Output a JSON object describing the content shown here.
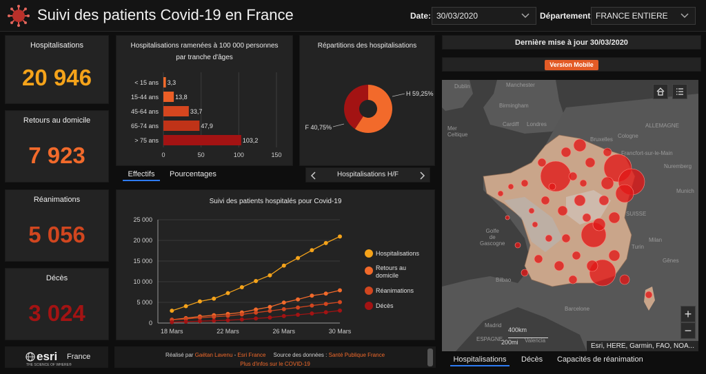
{
  "header": {
    "title": "Suivi des patients Covid-19 en France",
    "date_label": "Date:",
    "date_value": "30/03/2020",
    "department_label": "Département:",
    "department_value": "FRANCE ENTIERE"
  },
  "kpis": [
    {
      "title": "Hospitalisations",
      "value": "20 946",
      "color": "#f5a31a"
    },
    {
      "title": "Retours au domicile",
      "value": "7 923",
      "color": "#f26a2b"
    },
    {
      "title": "Réanimations",
      "value": "5 056",
      "color": "#d1461f"
    },
    {
      "title": "Décès",
      "value": "3 024",
      "color": "#a31313"
    }
  ],
  "age_chart": {
    "title": "Hospitalisations ramenées à 100 000 personnes par tranche d'âges",
    "tabs": [
      "Effectifs",
      "Pourcentages"
    ],
    "active_tab": "Effectifs"
  },
  "donut": {
    "title": "Répartitions des hospitalisations",
    "nav_label": "Hospitalisations H/F",
    "prev_icon": "chevron-left-icon",
    "next_icon": "chevron-right-icon"
  },
  "timeseries": {
    "title": "Suivi des patients hospitalés pour Covid-19"
  },
  "update": {
    "text": "Dernière mise à jour 30/03/2020",
    "mobile_button": "Version Mobile"
  },
  "map": {
    "attribution": "Esri, HERE, Garmin, FAO, NOA...",
    "scale_1": "400km",
    "scale_2": "200mi",
    "zoom_in": "+",
    "zoom_out": "−",
    "labels": {
      "dublin": "Dublin",
      "manchester": "Manchester",
      "birmingham": "Birmingham",
      "cardiff": "Cardiff",
      "londres": "Londres",
      "mer_celtique": "Mer\nCeltique",
      "cologne": "Cologne",
      "allemagne": "ALLEMAGNE",
      "bruxelles": "Bruxelles",
      "francfort": "Francfort-sur-le-Main",
      "nuremberg": "Nuremberg",
      "munich": "Munich",
      "suisse": "SUISSE",
      "milan": "Milan",
      "turin": "Turin",
      "golfe_gascogne": "Golfe\nde\nGascogne",
      "bilbao": "Bilbao",
      "barcelone": "Barcelone",
      "madrid": "Madrid",
      "valencia": "Valencia",
      "espagne": "ESPAGNE",
      "genes": "Gênes"
    },
    "tabs": [
      "Hospitalisations",
      "Décès",
      "Capacités de réanimation"
    ],
    "active_tab": "Hospitalisations"
  },
  "footer": {
    "esri_brand": "esri",
    "esri_country": "France",
    "esri_tagline": "THE SCIENCE OF WHERE®",
    "credits_prefix": "Réalisé par",
    "credits_author": "Gaëtan Lavenu",
    "credits_sep": " - ",
    "credits_company": "Esri France",
    "source_prefix": "Source des données :",
    "source_name": "Santé Publique France",
    "more_info": "Plus d'infos sur le COVID-19"
  },
  "colors": {
    "hospitalisations": "#f5a31a",
    "retours": "#f26a2b",
    "reanimations": "#d1461f",
    "deces": "#a31313",
    "accent": "#2e7cf6"
  },
  "chart_data": [
    {
      "type": "bar",
      "orientation": "horizontal",
      "categories": [
        "< 15 ans",
        "15-44 ans",
        "45-64 ans",
        "65-74 ans",
        "> 75 ans"
      ],
      "values": [
        3.3,
        13.8,
        33.7,
        47.9,
        103.2
      ],
      "value_labels": [
        "3,3",
        "13,8",
        "33,7",
        "47,9",
        "103,2"
      ],
      "xlim": [
        0,
        150
      ],
      "xticks": [
        0,
        50,
        100,
        150
      ],
      "bar_colors": [
        "#f26a2b",
        "#ea5e26",
        "#d5461f",
        "#c03318",
        "#a31313"
      ]
    },
    {
      "type": "pie",
      "donut": true,
      "labels": [
        "H",
        "F"
      ],
      "values": [
        59.25,
        40.75
      ],
      "value_labels": [
        "H 59,25%",
        "F 40,75%"
      ],
      "colors": [
        "#f26a2b",
        "#a31313"
      ]
    },
    {
      "type": "line",
      "x": [
        "17 Mars",
        "18 Mars",
        "19 Mars",
        "20 Mars",
        "21 Mars",
        "22 Mars",
        "23 Mars",
        "24 Mars",
        "25 Mars",
        "26 Mars",
        "27 Mars",
        "28 Mars",
        "29 Mars",
        "30 Mars"
      ],
      "xticks": [
        "18 Mars",
        "22 Mars",
        "26 Mars",
        "30 Mars"
      ],
      "ylim": [
        0,
        25000
      ],
      "yticks": [
        "0",
        "5 000",
        "10 000",
        "15 000",
        "20 000",
        "25 000"
      ],
      "series": [
        {
          "name": "Hospitalisations",
          "color": "#f5a31a",
          "values": [
            null,
            2972,
            4073,
            5226,
            5900,
            7240,
            8675,
            10176,
            11539,
            13904,
            15732,
            17620,
            19354,
            20946
          ]
        },
        {
          "name": "Retours au domicile",
          "color": "#f26a2b",
          "values": [
            null,
            816,
            1180,
            1587,
            1900,
            2200,
            2567,
            3281,
            3900,
            4948,
            5700,
            6624,
            7132,
            7923
          ]
        },
        {
          "name": "Réanimations",
          "color": "#d1461f",
          "values": [
            null,
            771,
            1002,
            1297,
            1500,
            1746,
            2082,
            2516,
            2935,
            3351,
            3758,
            4236,
            4632,
            5056
          ]
        },
        {
          "name": "Décès",
          "color": "#a31313",
          "values": [
            null,
            218,
            327,
            450,
            562,
            674,
            860,
            1100,
            1331,
            1696,
            1995,
            2314,
            2606,
            3024
          ]
        }
      ]
    }
  ]
}
